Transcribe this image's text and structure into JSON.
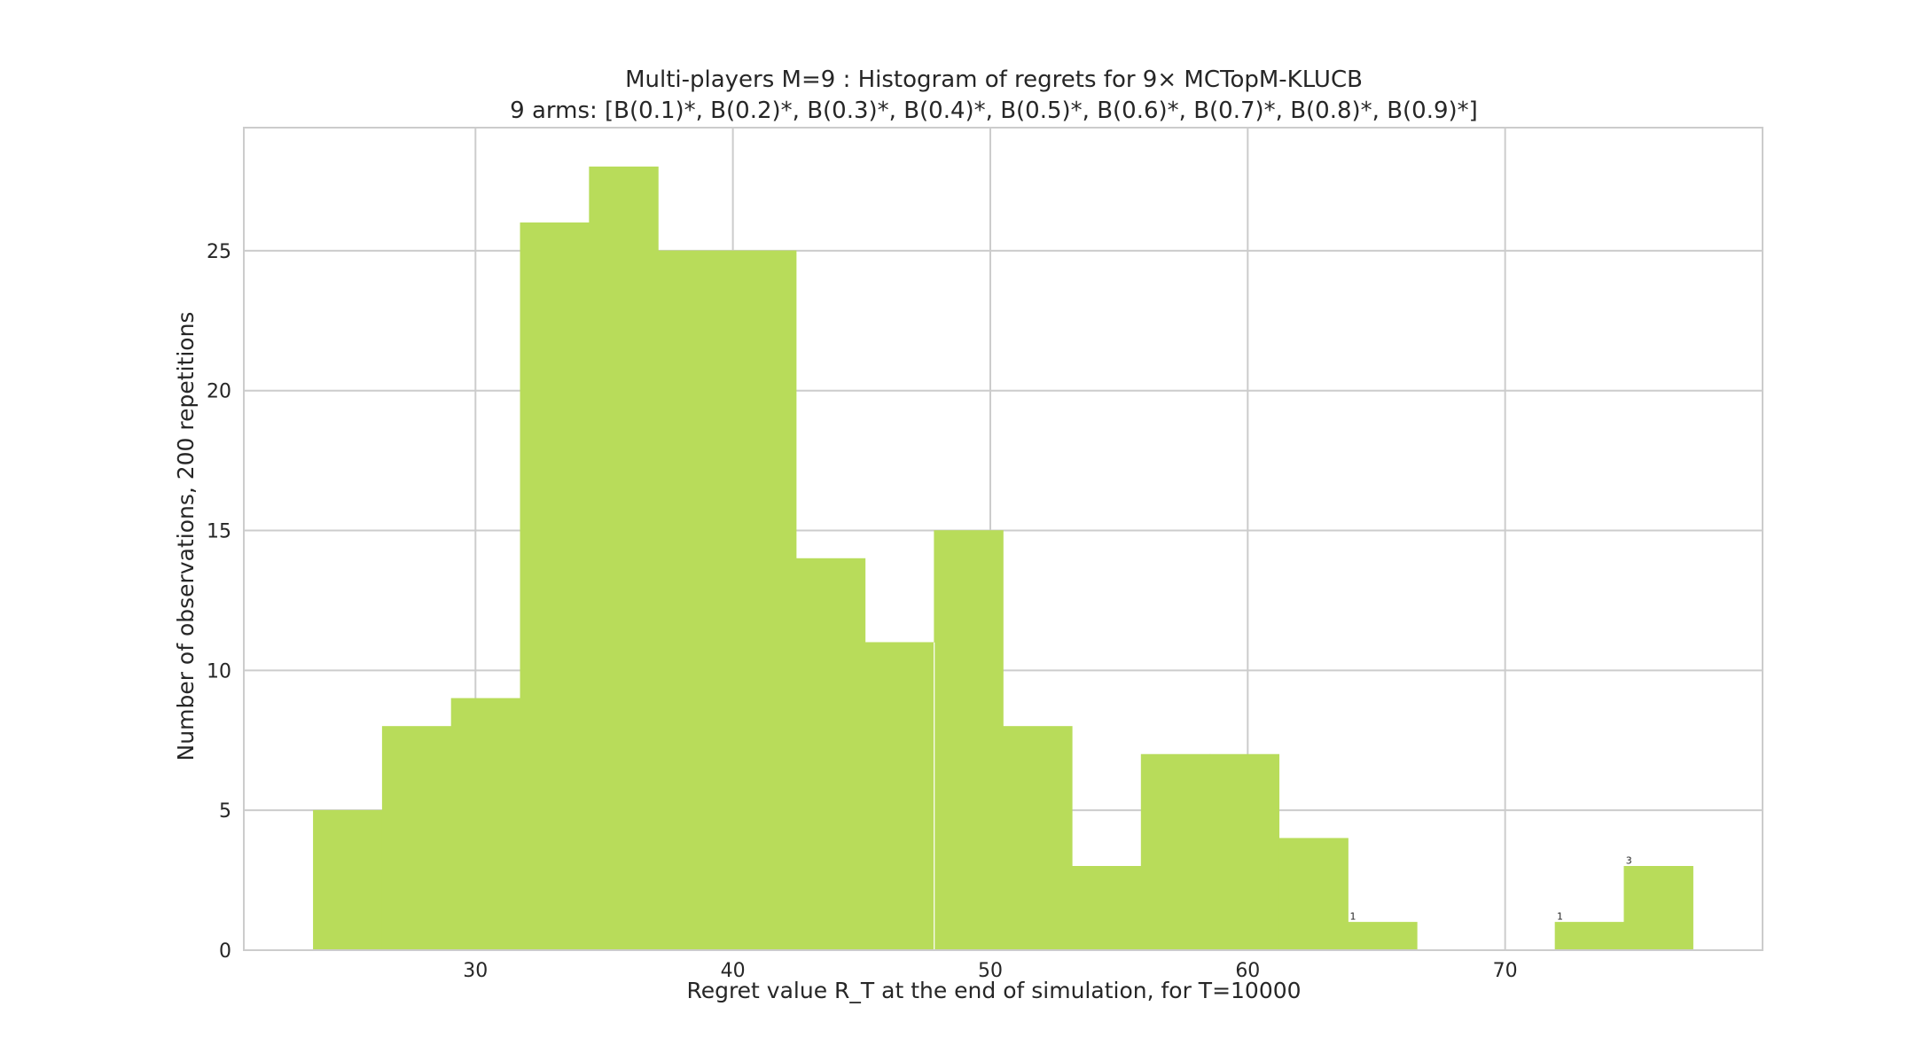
{
  "chart_data": {
    "type": "bar",
    "title": "Multi-players M=9 : Histogram of regrets for 9× MCTopM-KLUCB",
    "subtitle": "9 arms: [B(0.1)*, B(0.2)*, B(0.3)*, B(0.4)*, B(0.5)*, B(0.6)*, B(0.7)*, B(0.8)*, B(0.9)*]",
    "xlabel": "Regret value R_T at the end of simulation, for T=10000",
    "ylabel": "Number of observations, 200 repetitions",
    "xlim": [
      21.0,
      80.0
    ],
    "ylim": [
      0,
      29.4
    ],
    "xticks": [
      30,
      40,
      50,
      60,
      70
    ],
    "yticks": [
      0,
      5,
      10,
      15,
      20,
      25
    ],
    "grid": true,
    "color": "#b8dc5a",
    "bin_width": 2.68,
    "bins": [
      {
        "x0": 23.7,
        "count": 5
      },
      {
        "x0": 26.38,
        "count": 8
      },
      {
        "x0": 29.06,
        "count": 9
      },
      {
        "x0": 31.74,
        "count": 26
      },
      {
        "x0": 34.42,
        "count": 28
      },
      {
        "x0": 37.1,
        "count": 25
      },
      {
        "x0": 39.78,
        "count": 25
      },
      {
        "x0": 42.46,
        "count": 14
      },
      {
        "x0": 45.14,
        "count": 11
      },
      {
        "x0": 47.82,
        "count": 15
      },
      {
        "x0": 50.5,
        "count": 8
      },
      {
        "x0": 53.18,
        "count": 3
      },
      {
        "x0": 55.86,
        "count": 7
      },
      {
        "x0": 58.54,
        "count": 7
      },
      {
        "x0": 61.22,
        "count": 4
      },
      {
        "x0": 63.9,
        "count": 1
      },
      {
        "x0": 71.94,
        "count": 1
      },
      {
        "x0": 74.62,
        "count": 3
      }
    ],
    "annotations": [
      {
        "text": "1",
        "x": 63.9,
        "y": 1
      },
      {
        "text": "1",
        "x": 71.94,
        "y": 1
      },
      {
        "text": "3",
        "x": 74.62,
        "y": 3
      }
    ]
  }
}
